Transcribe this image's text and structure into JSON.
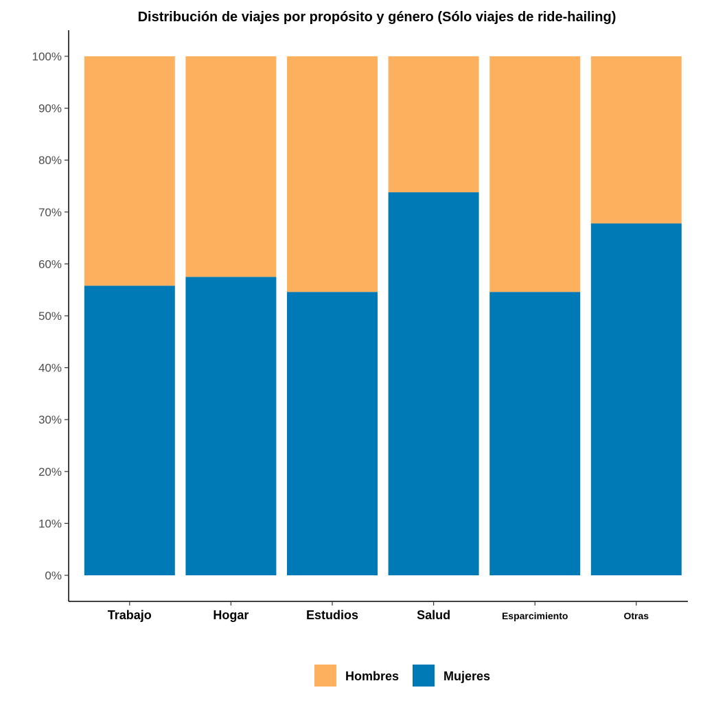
{
  "chart_data": {
    "type": "bar",
    "stacked": true,
    "percent": true,
    "title": "Distribución de viajes por propósito y género (Sólo viajes de ride-hailing)",
    "xlabel": "",
    "ylabel": "",
    "categories": [
      "Trabajo",
      "Hogar",
      "Estudios",
      "Salud",
      "Esparcimiento",
      "Otras"
    ],
    "series": [
      {
        "name": "Mujeres",
        "color": "#0079B7",
        "values": [
          55.8,
          57.5,
          54.6,
          73.8,
          54.6,
          67.8
        ]
      },
      {
        "name": "Hombres",
        "color": "#FDB05E",
        "values": [
          44.2,
          42.5,
          45.4,
          26.2,
          45.4,
          32.2
        ]
      }
    ],
    "ylim": [
      0,
      100
    ],
    "yticks": [
      "0%",
      "10%",
      "20%",
      "30%",
      "40%",
      "50%",
      "60%",
      "70%",
      "80%",
      "90%",
      "100%"
    ],
    "grid": false,
    "legend": {
      "position": "bottom",
      "entries": [
        {
          "label": "Hombres",
          "color": "#FDB05E"
        },
        {
          "label": "Mujeres",
          "color": "#0079B7"
        }
      ]
    }
  }
}
